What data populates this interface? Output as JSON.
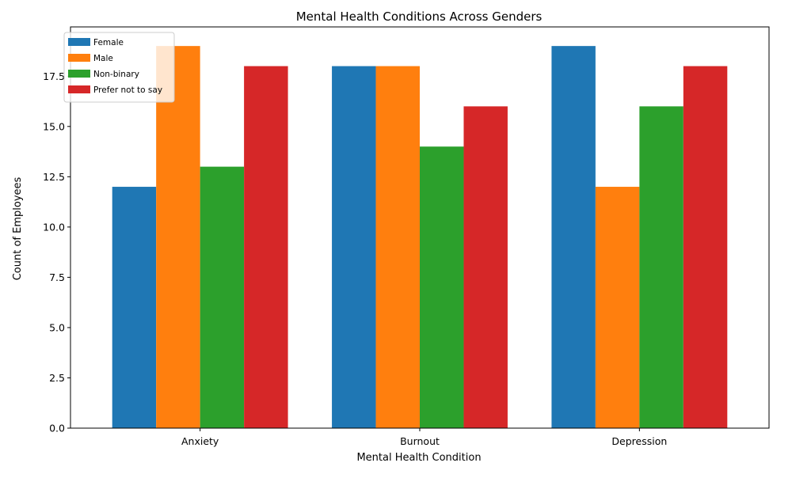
{
  "chart_data": {
    "type": "bar",
    "title": "Mental Health Conditions Across Genders",
    "xlabel": "Mental Health Condition",
    "ylabel": "Count of Employees",
    "categories": [
      "Anxiety",
      "Burnout",
      "Depression"
    ],
    "series": [
      {
        "name": "Female",
        "color": "#1f77b4",
        "values": [
          12,
          18,
          19
        ]
      },
      {
        "name": "Male",
        "color": "#ff7f0e",
        "values": [
          19,
          18,
          12
        ]
      },
      {
        "name": "Non-binary",
        "color": "#2ca02c",
        "values": [
          13,
          14,
          16
        ]
      },
      {
        "name": "Prefer not to say",
        "color": "#d62728",
        "values": [
          18,
          16,
          18
        ]
      }
    ],
    "ylim": [
      0,
      19.95
    ],
    "yticks": [
      "0.0",
      "2.5",
      "5.0",
      "7.5",
      "10.0",
      "12.5",
      "15.0",
      "17.5"
    ],
    "grid": false,
    "legend_position": "top-left"
  }
}
